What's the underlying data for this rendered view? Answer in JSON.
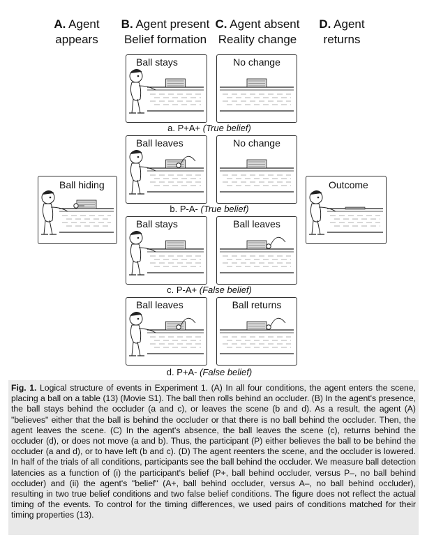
{
  "columns": {
    "a": {
      "letter": "A.",
      "line1": "Agent",
      "line2": "appears"
    },
    "b": {
      "letter": "B.",
      "line1": "Agent present",
      "line2": "Belief formation"
    },
    "c": {
      "letter": "C.",
      "line1": "Agent absent",
      "line2": "Reality change"
    },
    "d": {
      "letter": "D.",
      "line1": "Agent",
      "line2": "returns"
    }
  },
  "side_panels": {
    "left": "Ball hiding",
    "right": "Outcome"
  },
  "rows": [
    {
      "b_label": "Ball stays",
      "c_label": "No change",
      "caption": "a. P+A+",
      "belief": "(True belief)"
    },
    {
      "b_label": "Ball leaves",
      "c_label": "No change",
      "caption": "b. P-A-",
      "belief": "(True belief)"
    },
    {
      "b_label": "Ball stays",
      "c_label": "Ball leaves",
      "caption": "c.  P-A+",
      "belief": "(False belief)"
    },
    {
      "b_label": "Ball leaves",
      "c_label": "Ball returns",
      "caption": "d.  P+A-",
      "belief": "(False belief)"
    }
  ],
  "figure_caption": {
    "label": "Fig. 1.",
    "text": " Logical structure of events in Experiment 1. (A) In all four conditions, the agent enters the scene, placing a ball on a table (13) (Movie S1). The ball then rolls behind an occluder. (B) In the agent's presence, the ball stays behind the occluder (a and c), or leaves the scene (b and d). As a result, the agent (A) \"believes\" either that the ball is behind the occluder or that there is no ball behind the occluder. Then, the agent leaves the scene. (C) In the agent's absence, the ball leaves the scene (c), returns behind the occluder (d), or does not move (a and b). Thus, the participant (P) either believes the ball to be behind the occluder (a and d), or to have left (b and c). (D) The agent reenters the scene, and the occluder is lowered. In half of the trials of all conditions, participants see the ball behind the occluder. We measure ball detection latencies as a function of (i) the participant's belief (P+, ball behind occluder, versus P–, no ball behind occluder) and (ii) the agent's \"belief\" (A+, ball behind occluder, versus A–, no ball behind occluder), resulting in two true belief conditions and two false belief conditions. The figure does not reflect the actual timing of the events. To control for the timing differences, we used pairs of conditions matched for their timing properties (13)."
  }
}
